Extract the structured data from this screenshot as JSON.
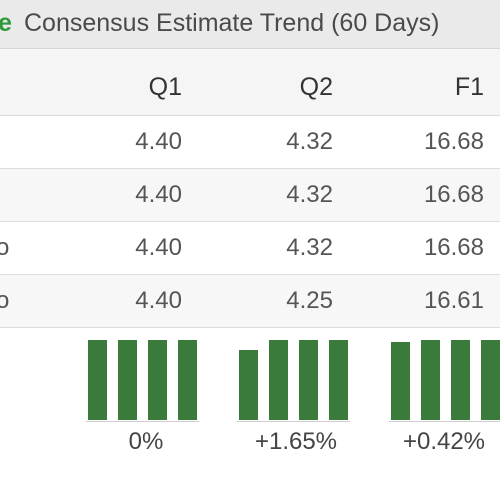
{
  "header": {
    "icon_letter": "e",
    "title": "Consensus Estimate Trend (60 Days)"
  },
  "columns": [
    "Q1",
    "Q2",
    "F1"
  ],
  "rows": [
    {
      "label": "",
      "values": [
        "4.40",
        "4.32",
        "16.68"
      ]
    },
    {
      "label": "",
      "values": [
        "4.40",
        "4.32",
        "16.68"
      ]
    },
    {
      "label": "o",
      "values": [
        "4.40",
        "4.32",
        "16.68"
      ]
    },
    {
      "label": "o",
      "values": [
        "4.40",
        "4.25",
        "16.61"
      ]
    }
  ],
  "trend_groups": [
    {
      "change": "0%",
      "bar_levels": [
        1.0,
        1.0,
        1.0,
        1.0
      ]
    },
    {
      "change": "+1.65%",
      "bar_levels": [
        0.87,
        1.0,
        1.0,
        1.0
      ]
    },
    {
      "change": "+0.42%",
      "bar_levels": [
        0.97,
        1.0,
        1.0,
        1.0
      ]
    }
  ],
  "colors": {
    "bar": "#3a7a3a",
    "icon": "#2f9a3a"
  }
}
